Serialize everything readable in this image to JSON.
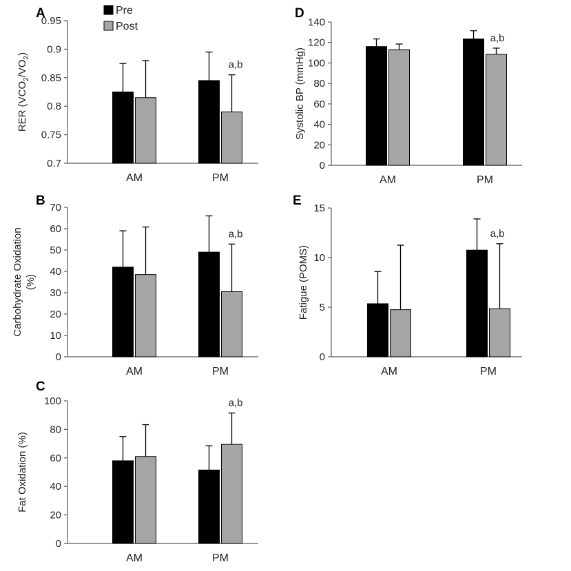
{
  "legend": {
    "pre": "Pre",
    "post": "Post"
  },
  "colors": {
    "pre": "#000000",
    "post": "#a6a6a6",
    "axis": "#595959",
    "errbar": "#000000"
  },
  "chart_data": [
    {
      "panel": "A",
      "type": "bar",
      "ylabel_parts": [
        "RER (VCO",
        "2",
        "/VO",
        "2",
        ")"
      ],
      "categories": [
        "AM",
        "PM"
      ],
      "series": [
        {
          "name": "Pre",
          "values": [
            0.825,
            0.845
          ],
          "errors": [
            0.05,
            0.05
          ]
        },
        {
          "name": "Post",
          "values": [
            0.815,
            0.79
          ],
          "errors": [
            0.065,
            0.065
          ]
        }
      ],
      "ylim": [
        0.7,
        0.95
      ],
      "yticks": [
        "0.7",
        "0.75",
        "0.8",
        "0.85",
        "0.9",
        "0.95"
      ],
      "annotation": "a,b"
    },
    {
      "panel": "B",
      "type": "bar",
      "ylabel_lines": [
        "Carbohydrate Oxidation",
        "(%)"
      ],
      "categories": [
        "AM",
        "PM"
      ],
      "series": [
        {
          "name": "Pre",
          "values": [
            42,
            49
          ],
          "errors": [
            17,
            17
          ]
        },
        {
          "name": "Post",
          "values": [
            38.5,
            30.5
          ],
          "errors": [
            22.3,
            22.3
          ]
        }
      ],
      "ylim": [
        0,
        70
      ],
      "yticks": [
        "0",
        "10",
        "20",
        "30",
        "40",
        "50",
        "60",
        "70"
      ],
      "annotation": "a,b"
    },
    {
      "panel": "C",
      "type": "bar",
      "ylabel": "Fat Oxidation (%)",
      "categories": [
        "AM",
        "PM"
      ],
      "series": [
        {
          "name": "Pre",
          "values": [
            58,
            51.5
          ],
          "errors": [
            17,
            17
          ]
        },
        {
          "name": "Post",
          "values": [
            61,
            69.5
          ],
          "errors": [
            22.3,
            22
          ]
        }
      ],
      "ylim": [
        0,
        100
      ],
      "yticks": [
        "0",
        "20",
        "40",
        "60",
        "80",
        "100"
      ],
      "annotation": "a,b"
    },
    {
      "panel": "D",
      "type": "bar",
      "ylabel": "Systolic BP (mmHg)",
      "categories": [
        "AM",
        "PM"
      ],
      "series": [
        {
          "name": "Pre",
          "values": [
            116,
            123.5
          ],
          "errors": [
            7.5,
            8
          ]
        },
        {
          "name": "Post",
          "values": [
            113,
            108.5
          ],
          "errors": [
            5.5,
            6
          ]
        }
      ],
      "ylim": [
        0,
        140
      ],
      "yticks": [
        "0",
        "20",
        "40",
        "60",
        "80",
        "100",
        "120",
        "140"
      ],
      "annotation": "a,b"
    },
    {
      "panel": "E",
      "type": "bar",
      "ylabel": "Fatigue (POMS)",
      "categories": [
        "AM",
        "PM"
      ],
      "series": [
        {
          "name": "Pre",
          "values": [
            5.35,
            10.75
          ],
          "errors": [
            3.25,
            3.15
          ]
        },
        {
          "name": "Post",
          "values": [
            4.75,
            4.85
          ],
          "errors": [
            6.5,
            6.55
          ]
        }
      ],
      "ylim": [
        0,
        15
      ],
      "yticks": [
        "0",
        "5",
        "10",
        "15"
      ],
      "annotation": "a,b"
    }
  ]
}
